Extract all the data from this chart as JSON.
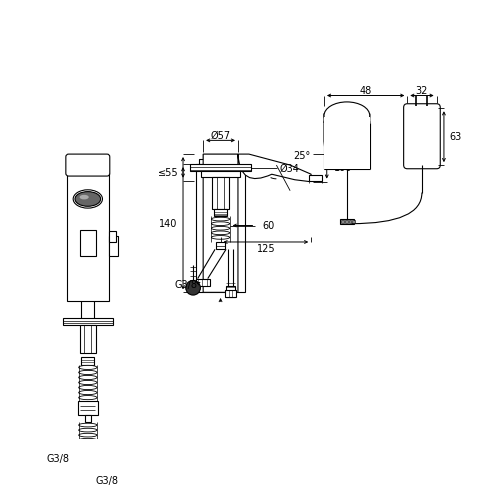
{
  "bg_color": "#ffffff",
  "line_color": "#000000",
  "lw": 0.8,
  "lw_thick": 1.2,
  "fs": 7.0,
  "annotations": {
    "phi57": "Ø57",
    "phi34": "Ø34",
    "dim140": "140",
    "dim125": "125",
    "dim100": "100",
    "dim55": "≤55",
    "dim60": "60",
    "dim25": "25°",
    "dim48": "48",
    "dim32": "32",
    "dim63": "63",
    "g38_a": "G3/8",
    "g38_b": "G3/8",
    "g38_c": "G3/8"
  }
}
